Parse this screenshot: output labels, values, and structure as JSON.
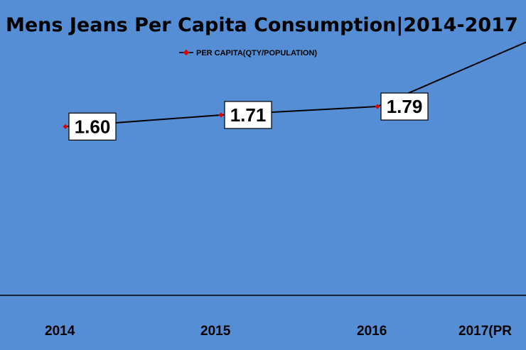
{
  "chart_data": {
    "type": "line",
    "title": "Mens Jeans Per Capita Consumption|2014-2017",
    "categories": [
      "2014",
      "2015",
      "2016",
      "2017(PR"
    ],
    "series": [
      {
        "name": "PER CAPITA(QTY/POPULATION)",
        "values": [
          1.6,
          1.71,
          1.79,
          2.4
        ],
        "data_labels": [
          "1.60",
          "1.71",
          "1.79",
          ""
        ]
      }
    ],
    "ylim": [
      0,
      2.8
    ],
    "grid": false,
    "legend_position": "top",
    "colors": {
      "background": "#558ed5",
      "line": "#000000",
      "marker": "#e00000",
      "label_box": "#ffffff"
    }
  }
}
